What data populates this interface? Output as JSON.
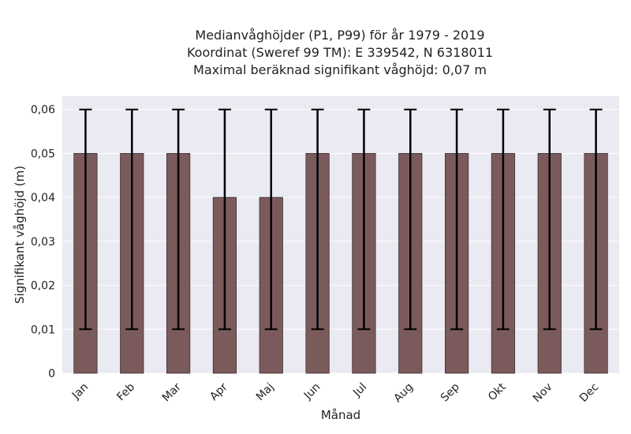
{
  "chart_data": {
    "type": "bar",
    "title_lines": [
      "Medianvåghöjder (P1, P99) för år 1979 - 2019",
      "Koordinat (Sweref 99 TM): E 339542, N 6318011",
      "Maximal beräknad signifikant våghöjd: 0,07 m"
    ],
    "xlabel": "Månad",
    "ylabel": "Signifikant våghöjd (m)",
    "categories": [
      "Jan",
      "Feb",
      "Mar",
      "Apr",
      "Maj",
      "Jun",
      "Jul",
      "Aug",
      "Sep",
      "Okt",
      "Nov",
      "Dec"
    ],
    "values": [
      0.05,
      0.05,
      0.05,
      0.04,
      0.04,
      0.05,
      0.05,
      0.05,
      0.05,
      0.05,
      0.05,
      0.05
    ],
    "error_low": [
      0.01,
      0.01,
      0.01,
      0.01,
      0.01,
      0.01,
      0.01,
      0.01,
      0.01,
      0.01,
      0.01,
      0.01
    ],
    "error_high": [
      0.06,
      0.06,
      0.06,
      0.06,
      0.06,
      0.06,
      0.06,
      0.06,
      0.06,
      0.06,
      0.06,
      0.06
    ],
    "yticks": [
      "0",
      "0,01",
      "0,02",
      "0,03",
      "0,04",
      "0,05",
      "0,06"
    ],
    "ylim": [
      0,
      0.063
    ],
    "grid": true,
    "colors": {
      "bar": "#7b5a5b",
      "bar_edge": "#3f2f30",
      "error": "#000000",
      "plot_bg": "#eaeaf2",
      "grid": "#ffffff"
    }
  }
}
